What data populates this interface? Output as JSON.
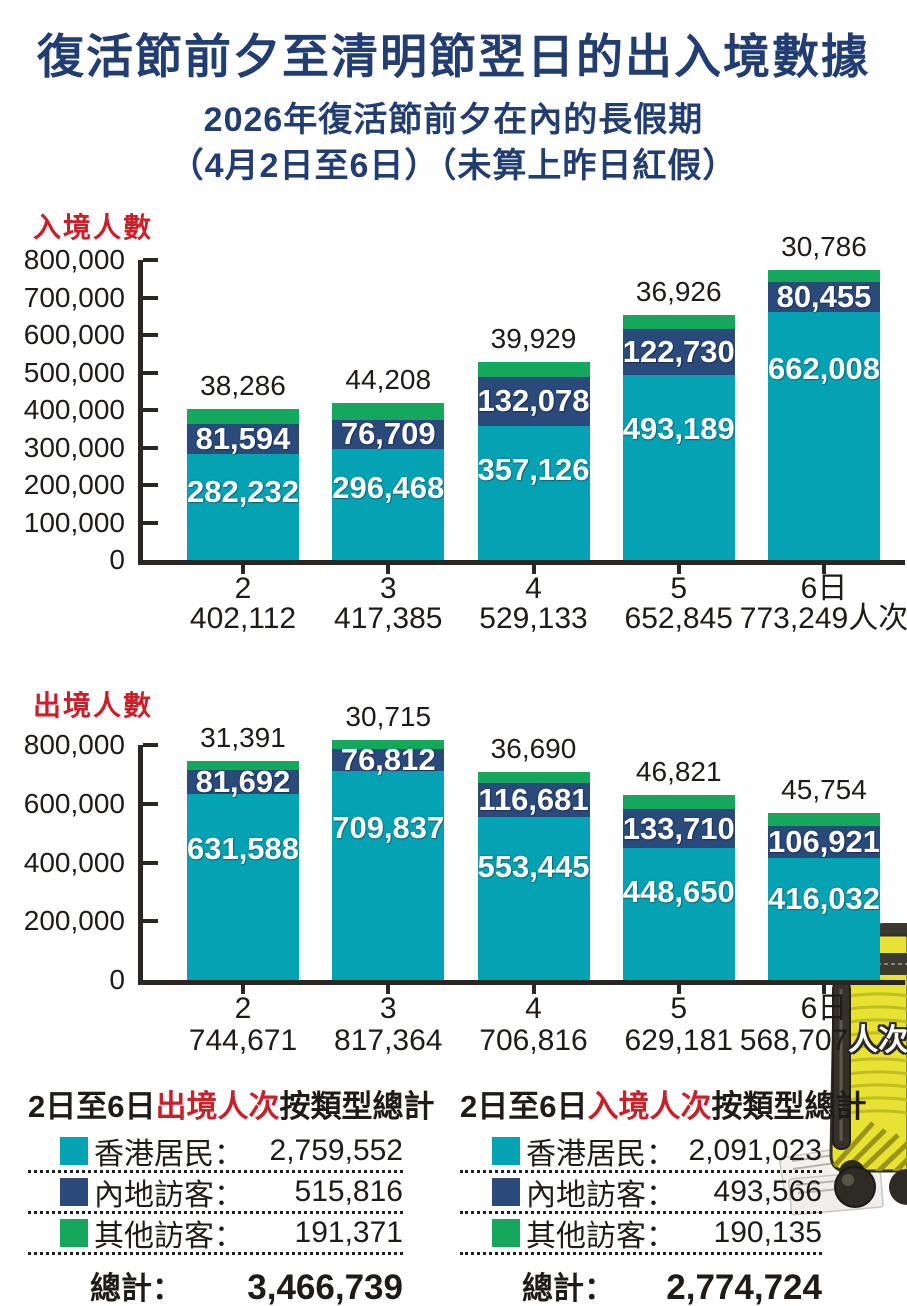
{
  "header": {
    "title": "復活節前夕至清明節翌日的出入境數據",
    "subtitle1": "2026年復活節前夕在內的長假期",
    "subtitle2": "（4月2日至6日）（未算上昨日紅假）"
  },
  "colors": {
    "hk": "#05a2b4",
    "mainland": "#2a4a7c",
    "other": "#15a75c",
    "title_navy": "#223d72",
    "red": "#c9202a",
    "axis": "#2a2624"
  },
  "chart_data": [
    {
      "id": "arrivals",
      "type": "bar",
      "stacked": true,
      "ylabel": "入境人數",
      "categories": [
        "2",
        "3",
        "4",
        "5",
        "6日"
      ],
      "series": [
        {
          "name": "香港居民",
          "key": "hk-residents",
          "color_key": "hk",
          "values": [
            282232,
            296468,
            357126,
            493189,
            662008
          ]
        },
        {
          "name": "內地訪客",
          "key": "mainland-visitors",
          "color_key": "mainland",
          "values": [
            81594,
            76709,
            132078,
            122730,
            80455
          ]
        },
        {
          "name": "其他訪客",
          "key": "other-visitors",
          "color_key": "other",
          "values": [
            38286,
            44208,
            39929,
            36926,
            30786
          ]
        }
      ],
      "totals": [
        402112,
        417385,
        529133,
        652845,
        773249
      ],
      "unit_suffix": "人次",
      "ylim": [
        0,
        800000
      ],
      "ytick_step": 100000,
      "grid": false,
      "legend_position": "none"
    },
    {
      "id": "departures",
      "type": "bar",
      "stacked": true,
      "ylabel": "出境人數",
      "categories": [
        "2",
        "3",
        "4",
        "5",
        "6日"
      ],
      "series": [
        {
          "name": "香港居民",
          "key": "hk-residents",
          "color_key": "hk",
          "values": [
            631588,
            709837,
            553445,
            448650,
            416032
          ]
        },
        {
          "name": "內地訪客",
          "key": "mainland-visitors",
          "color_key": "mainland",
          "values": [
            81692,
            76812,
            116681,
            133710,
            106921
          ]
        },
        {
          "name": "其他訪客",
          "key": "other-visitors",
          "color_key": "other",
          "values": [
            31391,
            30715,
            36690,
            46821,
            45754
          ]
        }
      ],
      "totals": [
        744671,
        817364,
        706816,
        629181,
        568707
      ],
      "unit_suffix": "人次",
      "ylim": [
        0,
        800000
      ],
      "ytick_step": 200000,
      "grid": false,
      "legend_position": "none"
    }
  ],
  "summary": {
    "panels": [
      {
        "title_prefix": "2日至6日",
        "title_highlight": "出境人次",
        "title_suffix": "按類型總計",
        "rows": [
          {
            "color_key": "hk",
            "label": "香港居民：",
            "value": "2,759,552"
          },
          {
            "color_key": "mainland",
            "label": "內地訪客：",
            "value": "515,816"
          },
          {
            "color_key": "other",
            "label": "其他訪客：",
            "value": "191,371"
          }
        ],
        "total_label": "總計：",
        "total_value": "3,466,739"
      },
      {
        "title_prefix": "2日至6日",
        "title_highlight": "入境人次",
        "title_suffix": "按類型總計",
        "rows": [
          {
            "color_key": "hk",
            "label": "香港居民：",
            "value": "2,091,023"
          },
          {
            "color_key": "mainland",
            "label": "內地訪客：",
            "value": "493,566"
          },
          {
            "color_key": "other",
            "label": "其他訪客：",
            "value": "190,135"
          }
        ],
        "total_label": "總計：",
        "total_value": "2,774,724"
      }
    ]
  }
}
